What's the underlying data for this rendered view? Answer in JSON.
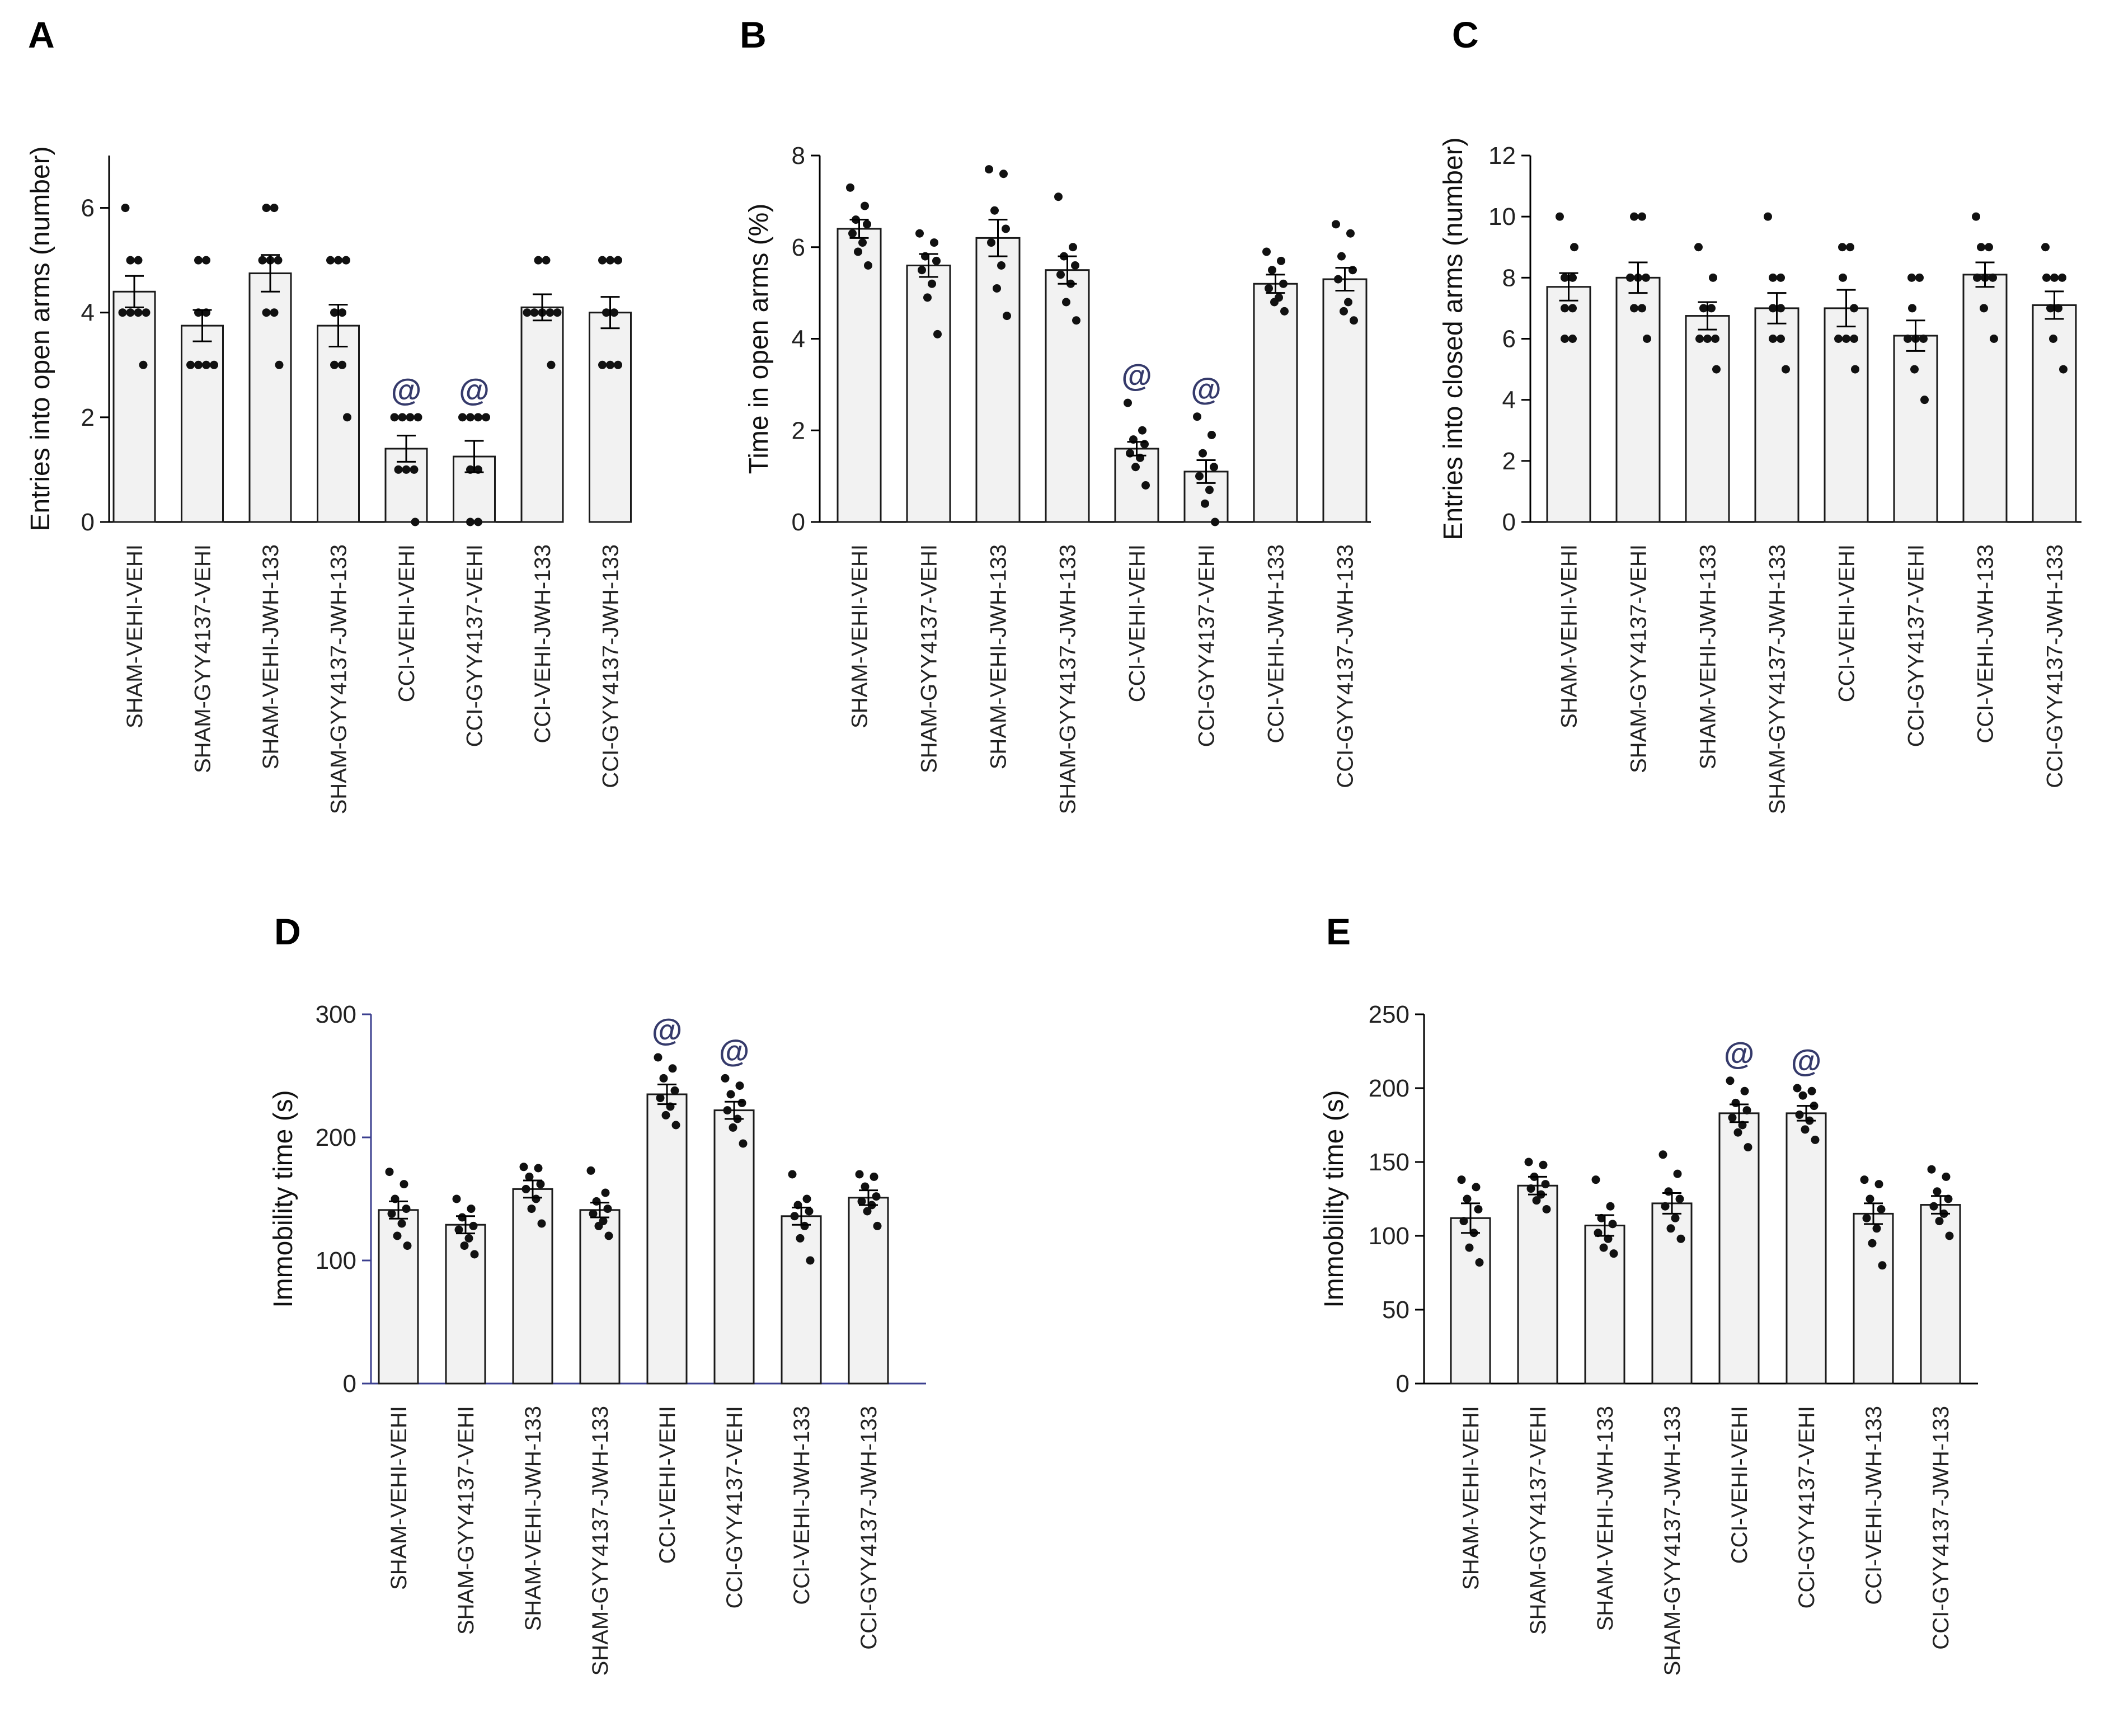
{
  "chart_data": [
    {
      "panel_label": "A",
      "type": "bar",
      "categories": [
        "SHAM-VEHI-VEHI",
        "SHAM-GYY4137-VEHI",
        "SHAM-VEHI-JWH-133",
        "SHAM-GYY4137-JWH-133",
        "CCI-VEHI-VEHI",
        "CCI-GYY4137-VEHI",
        "CCI-VEHI-JWH-133",
        "CCI-GYY4137-JWH-133"
      ],
      "values": [
        4.4,
        3.75,
        4.75,
        3.75,
        1.4,
        1.25,
        4.1,
        4.0
      ],
      "sem": [
        0.3,
        0.3,
        0.35,
        0.4,
        0.25,
        0.3,
        0.25,
        0.3
      ],
      "points": [
        [
          6,
          5,
          5,
          4,
          4,
          4,
          4,
          3
        ],
        [
          5,
          5,
          4,
          4,
          3,
          3,
          3,
          3
        ],
        [
          6,
          6,
          5,
          5,
          5,
          4,
          4,
          3
        ],
        [
          5,
          5,
          5,
          4,
          4,
          3,
          3,
          2
        ],
        [
          2,
          2,
          2,
          2,
          1,
          1,
          1,
          0
        ],
        [
          2,
          2,
          2,
          2,
          1,
          1,
          0,
          0
        ],
        [
          5,
          5,
          4,
          4,
          4,
          4,
          4,
          3
        ],
        [
          5,
          5,
          5,
          4,
          4,
          3,
          3,
          3
        ]
      ],
      "ylabel": "Entries into open arms (number)",
      "ylim": [
        0,
        7
      ],
      "yticks": [
        0,
        2,
        4,
        6
      ],
      "ytick_labels": [
        "0",
        "2",
        "4",
        "6"
      ],
      "annotations": [
        {
          "category": "CCI-VEHI-VEHI",
          "text": "@"
        },
        {
          "category": "CCI-GYY4137-VEHI",
          "text": "@"
        }
      ],
      "axis_color": "#000000"
    },
    {
      "panel_label": "B",
      "type": "bar",
      "categories": [
        "SHAM-VEHI-VEHI",
        "SHAM-GYY4137-VEHI",
        "SHAM-VEHI-JWH-133",
        "SHAM-GYY4137-JWH-133",
        "CCI-VEHI-VEHI",
        "CCI-GYY4137-VEHI",
        "CCI-VEHI-JWH-133",
        "CCI-GYY4137-JWH-133"
      ],
      "values": [
        6.4,
        5.6,
        6.2,
        5.5,
        1.6,
        1.1,
        5.2,
        5.3
      ],
      "sem": [
        0.2,
        0.25,
        0.4,
        0.3,
        0.15,
        0.25,
        0.2,
        0.25
      ],
      "points": [
        [
          7.3,
          6.9,
          6.6,
          6.5,
          6.3,
          6.1,
          5.9,
          5.6
        ],
        [
          6.3,
          6.1,
          5.8,
          5.7,
          5.5,
          5.2,
          4.9,
          4.1
        ],
        [
          7.7,
          7.6,
          6.8,
          6.4,
          6.1,
          5.6,
          5.1,
          4.5
        ],
        [
          7.1,
          6.0,
          5.8,
          5.6,
          5.4,
          5.2,
          4.8,
          4.4
        ],
        [
          2.6,
          2.0,
          1.8,
          1.7,
          1.5,
          1.4,
          1.2,
          0.8
        ],
        [
          2.3,
          1.9,
          1.5,
          1.2,
          1.0,
          0.7,
          0.4,
          0.0
        ],
        [
          5.9,
          5.7,
          5.5,
          5.2,
          5.1,
          4.9,
          4.8,
          4.6
        ],
        [
          6.5,
          6.3,
          5.8,
          5.5,
          5.3,
          4.8,
          4.6,
          4.4
        ]
      ],
      "ylabel": "Time in open arms (%)",
      "ylim": [
        0,
        8
      ],
      "yticks": [
        0,
        2,
        4,
        6,
        8
      ],
      "ytick_labels": [
        "0",
        "2",
        "4",
        "6",
        "8"
      ],
      "annotations": [
        {
          "category": "CCI-VEHI-VEHI",
          "text": "@"
        },
        {
          "category": "CCI-GYY4137-VEHI",
          "text": "@"
        }
      ],
      "axis_color": "#000000"
    },
    {
      "panel_label": "C",
      "type": "bar",
      "categories": [
        "SHAM-VEHI-VEHI",
        "SHAM-GYY4137-VEHI",
        "SHAM-VEHI-JWH-133",
        "SHAM-GYY4137-JWH-133",
        "CCI-VEHI-VEHI",
        "CCI-GYY4137-VEHI",
        "CCI-VEHI-JWH-133",
        "CCI-GYY4137-JWH-133"
      ],
      "values": [
        7.7,
        8.0,
        6.75,
        7.0,
        7.0,
        6.1,
        8.1,
        7.1
      ],
      "sem": [
        0.45,
        0.5,
        0.45,
        0.5,
        0.6,
        0.5,
        0.4,
        0.45
      ],
      "points": [
        [
          10,
          9,
          8,
          8,
          7,
          7,
          6,
          6
        ],
        [
          10,
          10,
          8,
          8,
          8,
          7,
          7,
          6
        ],
        [
          9,
          8,
          7,
          7,
          6,
          6,
          6,
          5
        ],
        [
          10,
          8,
          8,
          7,
          7,
          6,
          6,
          5
        ],
        [
          9,
          9,
          8,
          7,
          6,
          6,
          6,
          5
        ],
        [
          8,
          8,
          7,
          6,
          6,
          6,
          5,
          4
        ],
        [
          10,
          9,
          9,
          8,
          8,
          8,
          7,
          6
        ],
        [
          9,
          8,
          8,
          8,
          7,
          7,
          6,
          5
        ]
      ],
      "ylabel": "Entries into closed arms (number)",
      "ylim": [
        0,
        12
      ],
      "yticks": [
        0,
        2,
        4,
        6,
        8,
        10,
        12
      ],
      "ytick_labels": [
        "0",
        "2",
        "4",
        "6",
        "8",
        "10",
        "12"
      ],
      "annotations": [],
      "axis_color": "#000000"
    },
    {
      "panel_label": "D",
      "type": "bar",
      "categories": [
        "SHAM-VEHI-VEHI",
        "SHAM-GYY4137-VEHI",
        "SHAM-VEHI-JWH-133",
        "SHAM-GYY4137-JWH-133",
        "CCI-VEHI-VEHI",
        "CCI-GYY4137-VEHI",
        "CCI-VEHI-JWH-133",
        "CCI-GYY4137-JWH-133"
      ],
      "values": [
        141,
        129,
        158,
        141,
        235,
        222,
        136,
        151
      ],
      "sem": [
        7,
        7,
        7,
        6,
        8,
        7,
        7,
        6
      ],
      "points": [
        [
          172,
          162,
          150,
          142,
          138,
          130,
          120,
          112
        ],
        [
          150,
          142,
          135,
          128,
          125,
          118,
          112,
          105
        ],
        [
          176,
          175,
          168,
          162,
          158,
          150,
          142,
          130
        ],
        [
          173,
          155,
          148,
          142,
          138,
          132,
          128,
          120
        ],
        [
          265,
          256,
          248,
          238,
          232,
          225,
          218,
          210
        ],
        [
          248,
          242,
          235,
          228,
          222,
          215,
          208,
          195
        ],
        [
          170,
          150,
          145,
          140,
          136,
          128,
          118,
          100
        ],
        [
          170,
          168,
          160,
          152,
          148,
          145,
          140,
          128
        ]
      ],
      "ylabel": "Immobility time (s)",
      "ylim": [
        0,
        300
      ],
      "yticks": [
        0,
        100,
        200,
        300
      ],
      "ytick_labels": [
        "0",
        "100",
        "200",
        "300"
      ],
      "annotations": [
        {
          "category": "CCI-VEHI-VEHI",
          "text": "@"
        },
        {
          "category": "CCI-GYY4137-VEHI",
          "text": "@"
        }
      ],
      "axis_color": "#3b3f8f"
    },
    {
      "panel_label": "E",
      "type": "bar",
      "categories": [
        "SHAM-VEHI-VEHI",
        "SHAM-GYY4137-VEHI",
        "SHAM-VEHI-JWH-133",
        "SHAM-GYY4137-JWH-133",
        "CCI-VEHI-VEHI",
        "CCI-GYY4137-VEHI",
        "CCI-VEHI-JWH-133",
        "CCI-GYY4137-JWH-133"
      ],
      "values": [
        112,
        134,
        107,
        122,
        183,
        183,
        115,
        121
      ],
      "sem": [
        10,
        6,
        7,
        7,
        6,
        5,
        7,
        6
      ],
      "points": [
        [
          138,
          133,
          125,
          118,
          110,
          102,
          92,
          82
        ],
        [
          150,
          148,
          140,
          135,
          132,
          128,
          124,
          118
        ],
        [
          138,
          120,
          112,
          108,
          102,
          98,
          92,
          88
        ],
        [
          155,
          142,
          130,
          125,
          120,
          112,
          105,
          98
        ],
        [
          205,
          198,
          190,
          185,
          180,
          175,
          170,
          160
        ],
        [
          200,
          198,
          195,
          188,
          182,
          178,
          172,
          165
        ],
        [
          138,
          135,
          125,
          118,
          112,
          105,
          95,
          80
        ],
        [
          145,
          140,
          130,
          125,
          120,
          115,
          110,
          100
        ]
      ],
      "ylabel": "Immobility time (s)",
      "ylim": [
        0,
        250
      ],
      "yticks": [
        0,
        50,
        100,
        150,
        200,
        250
      ],
      "ytick_labels": [
        "0",
        "50",
        "100",
        "150",
        "200",
        "250"
      ],
      "annotations": [
        {
          "category": "CCI-VEHI-VEHI",
          "text": "@"
        },
        {
          "category": "CCI-GYY4137-VEHI",
          "text": "@"
        }
      ],
      "axis_color": "#000000"
    }
  ],
  "colors": {
    "bar_fill": "#f2f2f2",
    "bar_stroke": "#1a1a1a",
    "dot": "#111111",
    "annotation": "#353a6b",
    "text": "#222222"
  }
}
